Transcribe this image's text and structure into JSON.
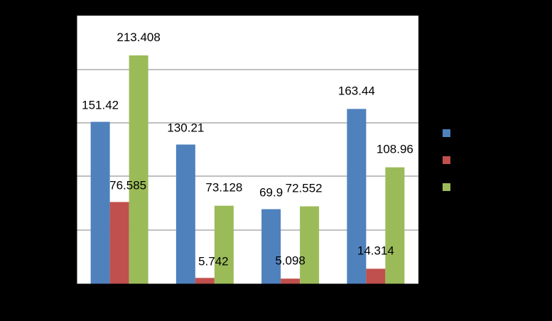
{
  "chart_data": {
    "type": "bar",
    "title": "",
    "xlabel": "",
    "ylabel": "",
    "categories": [
      "",
      "",
      "",
      ""
    ],
    "ylim": [
      0,
      213.408
    ],
    "grid": true,
    "legend_position": "right",
    "series": [
      {
        "color": "#4F81BD",
        "values": [
          151.42,
          130.21,
          69.9,
          163.44
        ],
        "labels": [
          "151.42",
          "130.21",
          "69.9",
          "163.44"
        ]
      },
      {
        "color": "#C0504D",
        "values": [
          76.585,
          5.742,
          5.098,
          14.314
        ],
        "labels": [
          "76.585",
          "5.742",
          "5.098",
          "14.314"
        ]
      },
      {
        "color": "#9BBB59",
        "values": [
          213.408,
          73.128,
          72.552,
          108.96
        ],
        "labels": [
          "213.408",
          "73.128",
          "72.552",
          "108.96"
        ]
      }
    ]
  }
}
